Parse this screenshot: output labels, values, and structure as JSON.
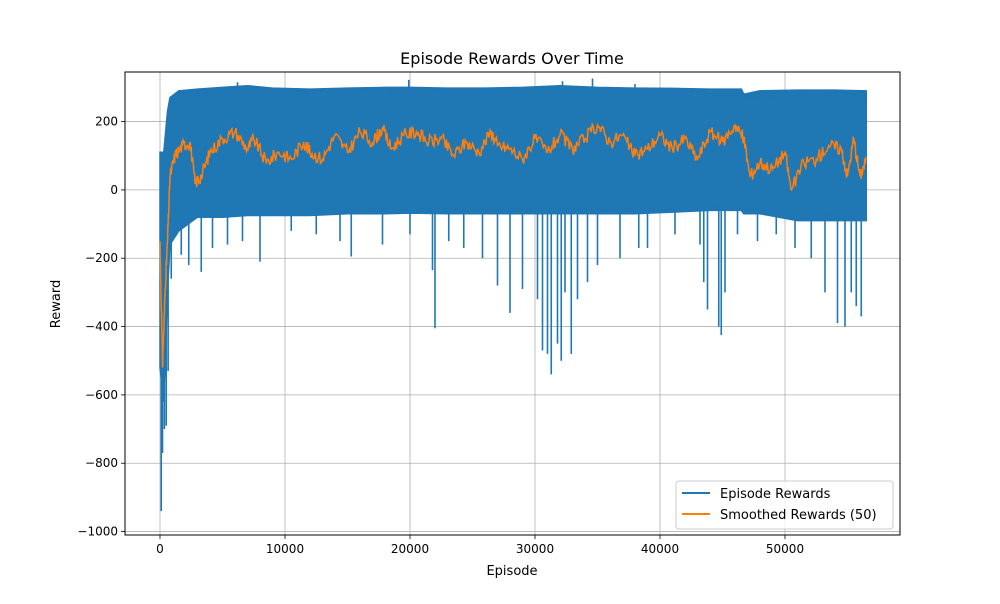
{
  "chart_data": {
    "type": "line",
    "title": "Episode Rewards Over Time",
    "xlabel": "Episode",
    "ylabel": "Reward",
    "xlim": [
      -2800,
      59200
    ],
    "ylim": [
      -1010,
      345
    ],
    "xticks": [
      0,
      10000,
      20000,
      30000,
      40000,
      50000
    ],
    "xtick_labels": [
      "0",
      "10000",
      "20000",
      "30000",
      "40000",
      "50000"
    ],
    "yticks": [
      -1000,
      -800,
      -600,
      -400,
      -200,
      0,
      200
    ],
    "ytick_labels": [
      "−1000",
      "−800",
      "−600",
      "−400",
      "−200",
      "0",
      "200"
    ],
    "grid": true,
    "legend_position": "lower right",
    "series": [
      {
        "name": "Episode Rewards",
        "color": "#1f77b4",
        "x_range": [
          0,
          56500
        ],
        "band": {
          "x": [
            0,
            300,
            600,
            800,
            1500,
            3000,
            5000,
            7000,
            9000,
            12000,
            15000,
            18000,
            20000,
            23000,
            26000,
            29000,
            32000,
            35000,
            38000,
            41000,
            44000,
            46500,
            46700,
            48000,
            51000,
            54000,
            56500
          ],
          "high": [
            110,
            110,
            230,
            270,
            290,
            295,
            300,
            305,
            298,
            295,
            298,
            300,
            300,
            298,
            298,
            300,
            305,
            300,
            298,
            297,
            295,
            295,
            280,
            290,
            292,
            292,
            290
          ],
          "low": [
            -520,
            -620,
            -300,
            -160,
            -120,
            -80,
            -80,
            -75,
            -75,
            -75,
            -70,
            -70,
            -68,
            -70,
            -70,
            -70,
            -70,
            -70,
            -70,
            -65,
            -60,
            -60,
            -70,
            -70,
            -90,
            -90,
            -90
          ]
        },
        "spikes": [
          {
            "x": 100,
            "y": -940
          },
          {
            "x": 200,
            "y": -770
          },
          {
            "x": 350,
            "y": -700
          },
          {
            "x": 500,
            "y": -690
          },
          {
            "x": 650,
            "y": -530
          },
          {
            "x": 900,
            "y": -260
          },
          {
            "x": 1700,
            "y": -190
          },
          {
            "x": 2300,
            "y": -220
          },
          {
            "x": 3300,
            "y": -240
          },
          {
            "x": 4200,
            "y": -170
          },
          {
            "x": 5400,
            "y": -160
          },
          {
            "x": 6600,
            "y": -150
          },
          {
            "x": 8000,
            "y": -210
          },
          {
            "x": 10500,
            "y": -120
          },
          {
            "x": 12500,
            "y": -130
          },
          {
            "x": 14400,
            "y": -150
          },
          {
            "x": 15300,
            "y": -195
          },
          {
            "x": 17800,
            "y": -160
          },
          {
            "x": 20000,
            "y": -130
          },
          {
            "x": 21800,
            "y": -235
          },
          {
            "x": 22000,
            "y": -405
          },
          {
            "x": 23100,
            "y": -150
          },
          {
            "x": 24300,
            "y": -170
          },
          {
            "x": 25800,
            "y": -200
          },
          {
            "x": 27000,
            "y": -280
          },
          {
            "x": 28000,
            "y": -360
          },
          {
            "x": 29000,
            "y": -290
          },
          {
            "x": 30200,
            "y": -320
          },
          {
            "x": 30600,
            "y": -470
          },
          {
            "x": 31000,
            "y": -480
          },
          {
            "x": 31300,
            "y": -540
          },
          {
            "x": 31800,
            "y": -450
          },
          {
            "x": 32100,
            "y": -500
          },
          {
            "x": 32400,
            "y": -300
          },
          {
            "x": 32900,
            "y": -480
          },
          {
            "x": 33400,
            "y": -320
          },
          {
            "x": 34200,
            "y": -270
          },
          {
            "x": 35000,
            "y": -220
          },
          {
            "x": 36800,
            "y": -200
          },
          {
            "x": 38300,
            "y": -170
          },
          {
            "x": 39000,
            "y": -170
          },
          {
            "x": 41200,
            "y": -130
          },
          {
            "x": 43200,
            "y": -160
          },
          {
            "x": 43500,
            "y": -270
          },
          {
            "x": 43800,
            "y": -350
          },
          {
            "x": 44700,
            "y": -400
          },
          {
            "x": 44900,
            "y": -425
          },
          {
            "x": 45200,
            "y": -300
          },
          {
            "x": 46200,
            "y": -130
          },
          {
            "x": 47800,
            "y": -150
          },
          {
            "x": 49300,
            "y": -130
          },
          {
            "x": 50800,
            "y": -170
          },
          {
            "x": 52100,
            "y": -200
          },
          {
            "x": 53200,
            "y": -300
          },
          {
            "x": 54200,
            "y": -390
          },
          {
            "x": 54800,
            "y": -400
          },
          {
            "x": 55300,
            "y": -300
          },
          {
            "x": 55700,
            "y": -340
          },
          {
            "x": 56100,
            "y": -370
          }
        ],
        "peaks": [
          {
            "x": 6200,
            "y": 315
          },
          {
            "x": 19900,
            "y": 322
          },
          {
            "x": 32200,
            "y": 318
          },
          {
            "x": 34600,
            "y": 326
          },
          {
            "x": 38000,
            "y": 310
          }
        ]
      },
      {
        "name": "Smoothed Rewards (50)",
        "color": "#ff7f0e",
        "x": [
          0,
          200,
          400,
          600,
          800,
          1200,
          1800,
          2400,
          2800,
          3300,
          4000,
          5000,
          6000,
          7000,
          7500,
          8500,
          9500,
          10500,
          11500,
          12000,
          13000,
          14000,
          15000,
          16000,
          17000,
          17800,
          18500,
          19500,
          20500,
          21500,
          22500,
          23500,
          24500,
          25500,
          26500,
          27000,
          28000,
          29000,
          30000,
          31000,
          32000,
          33000,
          34000,
          35000,
          36000,
          37000,
          38000,
          39000,
          40000,
          41000,
          42000,
          43000,
          44000,
          45000,
          46000,
          46700,
          47200,
          48000,
          49000,
          50000,
          50500,
          51500,
          52500,
          53500,
          54500,
          55000,
          55500,
          56000,
          56500
        ],
        "values": [
          -150,
          -520,
          -300,
          -150,
          40,
          100,
          130,
          140,
          20,
          40,
          110,
          150,
          170,
          120,
          150,
          80,
          110,
          90,
          140,
          110,
          90,
          160,
          110,
          170,
          140,
          180,
          120,
          160,
          170,
          140,
          150,
          100,
          140,
          110,
          170,
          130,
          120,
          90,
          150,
          110,
          160,
          120,
          150,
          190,
          140,
          160,
          100,
          120,
          160,
          120,
          150,
          90,
          170,
          140,
          190,
          150,
          40,
          80,
          60,
          110,
          0,
          80,
          90,
          130,
          120,
          40,
          150,
          40,
          90
        ]
      }
    ]
  }
}
